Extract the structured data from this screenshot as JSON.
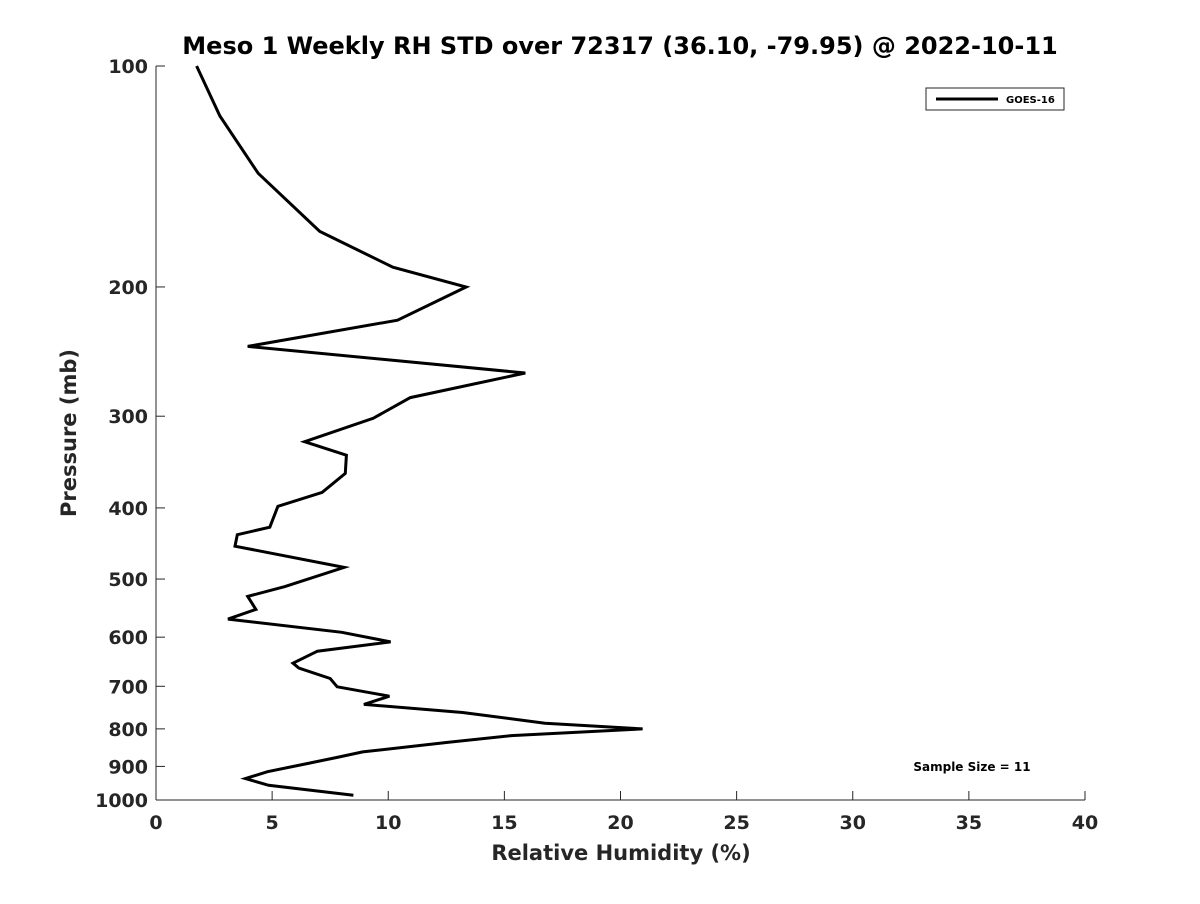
{
  "chart_data": {
    "type": "line",
    "title": "Meso 1 Weekly RH STD over 72317 (36.10, -79.95) @ 2022-10-11",
    "xlabel": "Relative Humidity (%)",
    "ylabel": "Pressure (mb)",
    "xlim": [
      0,
      40
    ],
    "ylim": [
      100,
      1000
    ],
    "y_scale": "log",
    "y_reversed": true,
    "xticks": [
      0,
      5,
      10,
      15,
      20,
      25,
      30,
      35,
      40
    ],
    "yticks": [
      100,
      200,
      300,
      400,
      500,
      600,
      700,
      800,
      900,
      1000
    ],
    "grid": false,
    "legend_position": "top-right",
    "annotation": "Sample Size = 11",
    "series": [
      {
        "name": "GOES-16",
        "color": "#000000",
        "x": [
          1.75,
          2.75,
          4.4,
          7.05,
          10.2,
          13.35,
          10.4,
          3.95,
          15.9,
          10.95,
          9.35,
          6.4,
          8.2,
          8.15,
          7.15,
          5.25,
          4.9,
          3.5,
          3.4,
          8.1,
          5.55,
          3.95,
          4.3,
          3.1,
          8.0,
          10.1,
          6.95,
          5.9,
          6.15,
          7.5,
          7.8,
          10.05,
          8.95,
          13.2,
          16.75,
          20.95,
          15.3,
          12.5,
          8.9,
          7.8,
          6.5,
          4.8,
          3.85,
          4.85,
          8.5
        ],
        "y": [
          100,
          117,
          140,
          168,
          188,
          200,
          222,
          241,
          262,
          283,
          302,
          325,
          339,
          359,
          381,
          398,
          425,
          435,
          451,
          482,
          512,
          528,
          550,
          567,
          591,
          609,
          627,
          651,
          661,
          683,
          701,
          722,
          741,
          760,
          786,
          800,
          817,
          835,
          860,
          875,
          892,
          915,
          935,
          955,
          985
        ]
      }
    ]
  }
}
